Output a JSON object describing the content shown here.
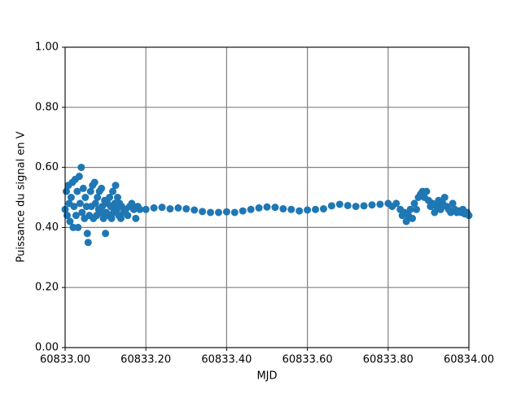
{
  "chart_data": {
    "type": "scatter",
    "xlabel": "MJD",
    "ylabel": "Puissance du signal en V",
    "color": "#1f77b4",
    "grid": true,
    "xlim": [
      60833,
      60834
    ],
    "ylim": [
      0,
      1
    ],
    "xticks": [
      {
        "value": 60833,
        "label": "60833.00"
      },
      {
        "value": 60833.2,
        "label": "60833.20"
      },
      {
        "value": 60833.4,
        "label": "60833.40"
      },
      {
        "value": 60833.6,
        "label": "60833.60"
      },
      {
        "value": 60833.8,
        "label": "60833.80"
      },
      {
        "value": 60834,
        "label": "60834.00"
      }
    ],
    "yticks": [
      {
        "value": 0,
        "label": "0.00"
      },
      {
        "value": 0.2,
        "label": "0.20"
      },
      {
        "value": 0.4,
        "label": "0.40"
      },
      {
        "value": 0.6,
        "label": "0.60"
      },
      {
        "value": 0.8,
        "label": "0.80"
      },
      {
        "value": 1,
        "label": "1.00"
      }
    ],
    "x": [
      60833.0,
      60833.003,
      60833.005,
      60833.008,
      60833.01,
      60833.012,
      60833.015,
      60833.018,
      60833.02,
      60833.022,
      60833.025,
      60833.027,
      60833.03,
      60833.032,
      60833.035,
      60833.037,
      60833.04,
      60833.042,
      60833.045,
      60833.048,
      60833.05,
      60833.053,
      60833.055,
      60833.057,
      60833.06,
      60833.063,
      60833.065,
      60833.068,
      60833.07,
      60833.073,
      60833.075,
      60833.078,
      60833.08,
      60833.083,
      60833.085,
      60833.088,
      60833.09,
      60833.092,
      60833.095,
      60833.098,
      60833.1,
      60833.102,
      60833.105,
      60833.108,
      60833.11,
      60833.113,
      60833.115,
      60833.118,
      60833.12,
      60833.123,
      60833.125,
      60833.128,
      60833.13,
      60833.133,
      60833.135,
      60833.138,
      60833.14,
      60833.145,
      60833.15,
      60833.155,
      60833.16,
      60833.165,
      60833.17,
      60833.175,
      60833.18,
      60833.185,
      60833.2,
      60833.22,
      60833.24,
      60833.26,
      60833.28,
      60833.3,
      60833.32,
      60833.34,
      60833.36,
      60833.38,
      60833.4,
      60833.42,
      60833.44,
      60833.46,
      60833.48,
      60833.5,
      60833.52,
      60833.54,
      60833.56,
      60833.58,
      60833.6,
      60833.62,
      60833.64,
      60833.66,
      60833.68,
      60833.7,
      60833.72,
      60833.74,
      60833.76,
      60833.78,
      60833.8,
      60833.81,
      60833.82,
      60833.83,
      60833.835,
      60833.84,
      60833.845,
      60833.85,
      60833.855,
      60833.86,
      60833.865,
      60833.87,
      60833.875,
      60833.88,
      60833.885,
      60833.89,
      60833.895,
      60833.9,
      60833.905,
      60833.91,
      60833.915,
      60833.92,
      60833.925,
      60833.93,
      60833.935,
      60833.94,
      60833.945,
      60833.95,
      60833.955,
      60833.96,
      60833.965,
      60833.97,
      60833.975,
      60833.98,
      60833.985,
      60833.99,
      60833.995,
      60834.0
    ],
    "values": [
      0.46,
      0.52,
      0.44,
      0.54,
      0.48,
      0.42,
      0.5,
      0.55,
      0.4,
      0.47,
      0.56,
      0.44,
      0.52,
      0.4,
      0.57,
      0.48,
      0.6,
      0.45,
      0.53,
      0.43,
      0.5,
      0.47,
      0.38,
      0.35,
      0.44,
      0.52,
      0.47,
      0.54,
      0.43,
      0.55,
      0.48,
      0.44,
      0.5,
      0.46,
      0.52,
      0.45,
      0.53,
      0.47,
      0.43,
      0.49,
      0.38,
      0.45,
      0.48,
      0.44,
      0.5,
      0.47,
      0.43,
      0.52,
      0.45,
      0.48,
      0.54,
      0.46,
      0.5,
      0.44,
      0.48,
      0.43,
      0.47,
      0.45,
      0.46,
      0.44,
      0.47,
      0.48,
      0.46,
      0.43,
      0.47,
      0.46,
      0.46,
      0.465,
      0.467,
      0.462,
      0.465,
      0.462,
      0.458,
      0.453,
      0.45,
      0.45,
      0.452,
      0.45,
      0.455,
      0.46,
      0.465,
      0.468,
      0.467,
      0.462,
      0.46,
      0.455,
      0.458,
      0.46,
      0.462,
      0.472,
      0.477,
      0.473,
      0.47,
      0.472,
      0.475,
      0.477,
      0.48,
      0.47,
      0.48,
      0.46,
      0.44,
      0.45,
      0.42,
      0.44,
      0.46,
      0.43,
      0.48,
      0.46,
      0.5,
      0.51,
      0.52,
      0.5,
      0.52,
      0.49,
      0.47,
      0.48,
      0.45,
      0.47,
      0.49,
      0.46,
      0.48,
      0.5,
      0.47,
      0.46,
      0.45,
      0.48,
      0.46,
      0.45,
      0.455,
      0.45,
      0.46,
      0.445,
      0.45,
      0.44
    ]
  }
}
